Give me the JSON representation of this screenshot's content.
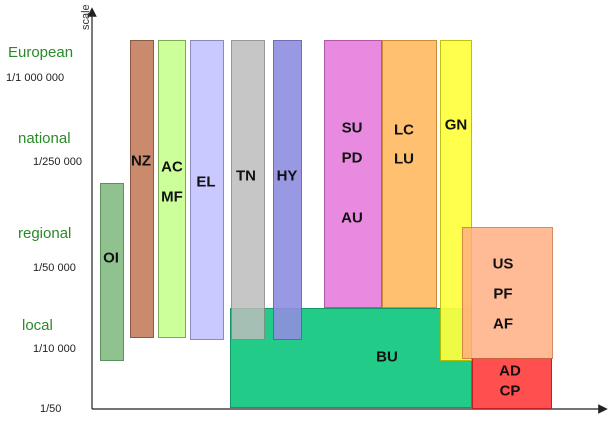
{
  "axis": {
    "y_title": "scale"
  },
  "levels": [
    {
      "id": "european",
      "name": "European",
      "scale": "1/1 000 000"
    },
    {
      "id": "national",
      "name": "national",
      "scale": "1/250 000"
    },
    {
      "id": "regional",
      "name": "regional",
      "scale": "1/50 000"
    },
    {
      "id": "local",
      "name": "local",
      "scale": "1/10 000"
    },
    {
      "id": "base",
      "name": "",
      "scale": "1/50"
    }
  ],
  "themes": [
    {
      "id": "oi",
      "labels": [
        "OI"
      ],
      "color": "#8fc28f"
    },
    {
      "id": "nz",
      "labels": [
        "NZ"
      ],
      "color": "#c98a6e"
    },
    {
      "id": "ac-mf",
      "labels": [
        "AC",
        "MF"
      ],
      "color": "#ccff99"
    },
    {
      "id": "el",
      "labels": [
        "EL"
      ],
      "color": "#c9c9ff"
    },
    {
      "id": "tn",
      "labels": [
        "TN"
      ],
      "color": "#bdbdbd"
    },
    {
      "id": "hy",
      "labels": [
        "HY"
      ],
      "color": "#8f8fe0"
    },
    {
      "id": "su-pd-au",
      "labels": [
        "SU",
        "PD",
        "AU"
      ],
      "color": "#e88be0"
    },
    {
      "id": "lc-lu",
      "labels": [
        "LC",
        "LU"
      ],
      "color": "#ffc070"
    },
    {
      "id": "gn",
      "labels": [
        "GN"
      ],
      "color": "#ffff40"
    },
    {
      "id": "bu",
      "labels": [
        "BU"
      ],
      "color": "#22cc88"
    },
    {
      "id": "us-pf-af",
      "labels": [
        "US",
        "PF",
        "AF"
      ],
      "color": "#ffab80"
    },
    {
      "id": "ad-cp",
      "labels": [
        "AD",
        "CP"
      ],
      "color": "#ff4f4f"
    }
  ]
}
